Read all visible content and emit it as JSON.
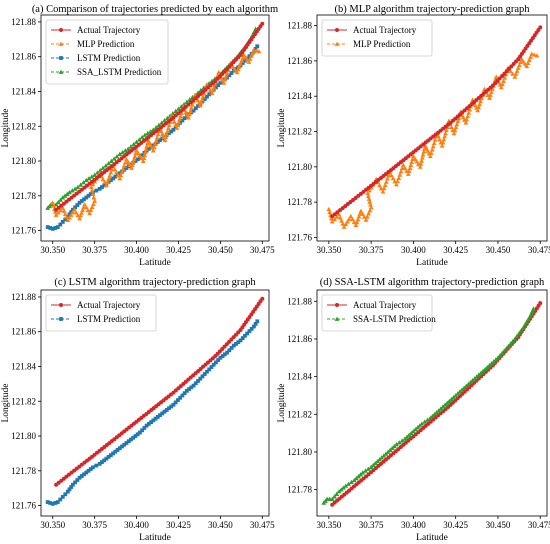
{
  "colors": {
    "actual": "#d62728",
    "mlp": "#ff7f0e",
    "lstm": "#1f77b4",
    "ssa": "#2ca02c"
  },
  "chart_data": [
    {
      "type": "line",
      "title": "(a) Comparison of trajectories predicted by each algorithm",
      "xlabel": "Latitude",
      "ylabel": "Longitude",
      "xlim": [
        30.343,
        30.479
      ],
      "ylim": [
        121.754,
        121.884
      ],
      "xticks": [
        30.35,
        30.375,
        30.4,
        30.425,
        30.45,
        30.475
      ],
      "xtick_labels": [
        "30.350",
        "30.375",
        "30.400",
        "30.425",
        "30.450",
        "30.475"
      ],
      "yticks": [
        121.76,
        121.78,
        121.8,
        121.82,
        121.84,
        121.86,
        121.88
      ],
      "ytick_labels": [
        "121.76",
        "121.78",
        "121.80",
        "121.82",
        "121.84",
        "121.86",
        "121.88"
      ],
      "legend": "upper-left",
      "series": [
        {
          "name": "Actual Trajectory",
          "key": "actual",
          "marker": "o",
          "dashed": false
        },
        {
          "name": "MLP Prediction",
          "key": "mlp",
          "marker": "^",
          "dashed": true
        },
        {
          "name": "LSTM Prediction",
          "key": "lstm",
          "marker": "s",
          "dashed": true
        },
        {
          "name": "SSA_LSTM Prediction",
          "key": "ssa",
          "marker": "^",
          "dashed": true
        }
      ]
    },
    {
      "type": "line",
      "title": "(b) MLP algorithm trajectory-prediction graph",
      "xlabel": "Latitude",
      "ylabel": "Longitude",
      "xlim": [
        30.343,
        30.479
      ],
      "ylim": [
        121.758,
        121.886
      ],
      "xticks": [
        30.35,
        30.375,
        30.4,
        30.425,
        30.45,
        30.475
      ],
      "xtick_labels": [
        "30.350",
        "30.375",
        "30.400",
        "30.425",
        "30.450",
        "30.475"
      ],
      "yticks": [
        121.76,
        121.78,
        121.8,
        121.82,
        121.84,
        121.86,
        121.88
      ],
      "ytick_labels": [
        "121.76",
        "121.78",
        "121.80",
        "121.82",
        "121.84",
        "121.86",
        "121.88"
      ],
      "legend": "upper-left",
      "series": [
        {
          "name": "Actual Trajectory",
          "key": "actual",
          "marker": "o",
          "dashed": false
        },
        {
          "name": "MLP Prediction",
          "key": "mlp",
          "marker": "^",
          "dashed": true
        }
      ]
    },
    {
      "type": "line",
      "title": "(c) LSTM algorithm trajectory-prediction graph",
      "xlabel": "Latitude",
      "ylabel": "Longitude",
      "xlim": [
        30.343,
        30.479
      ],
      "ylim": [
        121.754,
        121.884
      ],
      "xticks": [
        30.35,
        30.375,
        30.4,
        30.425,
        30.45,
        30.475
      ],
      "xtick_labels": [
        "30.350",
        "30.375",
        "30.400",
        "30.425",
        "30.450",
        "30.475"
      ],
      "yticks": [
        121.76,
        121.78,
        121.8,
        121.82,
        121.84,
        121.86,
        121.88
      ],
      "ytick_labels": [
        "121.76",
        "121.78",
        "121.80",
        "121.82",
        "121.84",
        "121.86",
        "121.88"
      ],
      "legend": "upper-left",
      "series": [
        {
          "name": "Actual Trajectory",
          "key": "actual",
          "marker": "o",
          "dashed": false
        },
        {
          "name": "LSTM Prediction",
          "key": "lstm",
          "marker": "s",
          "dashed": true
        }
      ]
    },
    {
      "type": "line",
      "title": "(d) SSA-LSTM algorithm trajectory-prediction graph",
      "xlabel": "Latitude",
      "ylabel": "Longitude",
      "xlim": [
        30.343,
        30.479
      ],
      "ylim": [
        121.766,
        121.886
      ],
      "xticks": [
        30.35,
        30.375,
        30.4,
        30.425,
        30.45,
        30.475
      ],
      "xtick_labels": [
        "30.350",
        "30.375",
        "30.400",
        "30.425",
        "30.450",
        "30.475"
      ],
      "yticks": [
        121.78,
        121.8,
        121.82,
        121.84,
        121.86,
        121.88
      ],
      "ytick_labels": [
        "121.78",
        "121.80",
        "121.82",
        "121.84",
        "121.86",
        "121.88"
      ],
      "legend": "upper-left",
      "series": [
        {
          "name": "Actual Trajectory",
          "key": "actual",
          "marker": "o",
          "dashed": false
        },
        {
          "name": "SSA-LSTM Prediction",
          "key": "ssa",
          "marker": "^",
          "dashed": true
        }
      ]
    }
  ],
  "trajectories": {
    "actual": [
      [
        30.352,
        121.772
      ],
      [
        30.372,
        121.787
      ],
      [
        30.397,
        121.806
      ],
      [
        30.422,
        121.825
      ],
      [
        30.447,
        121.846
      ],
      [
        30.462,
        121.861
      ],
      [
        30.475,
        121.879
      ]
    ],
    "mlp": [
      [
        30.35,
        121.776
      ],
      [
        30.352,
        121.769
      ],
      [
        30.356,
        121.773
      ],
      [
        30.359,
        121.766
      ],
      [
        30.363,
        121.772
      ],
      [
        30.366,
        121.767
      ],
      [
        30.369,
        121.775
      ],
      [
        30.372,
        121.77
      ],
      [
        30.375,
        121.777
      ],
      [
        30.373,
        121.785
      ],
      [
        30.378,
        121.793
      ],
      [
        30.382,
        121.786
      ],
      [
        30.386,
        121.797
      ],
      [
        30.39,
        121.79
      ],
      [
        30.394,
        121.801
      ],
      [
        30.397,
        121.796
      ],
      [
        30.4,
        121.806
      ],
      [
        30.404,
        121.8
      ],
      [
        30.407,
        121.812
      ],
      [
        30.41,
        121.806
      ],
      [
        30.414,
        121.819
      ],
      [
        30.417,
        121.812
      ],
      [
        30.421,
        121.826
      ],
      [
        30.424,
        121.819
      ],
      [
        30.428,
        121.831
      ],
      [
        30.431,
        121.825
      ],
      [
        30.435,
        121.838
      ],
      [
        30.438,
        121.832
      ],
      [
        30.442,
        121.844
      ],
      [
        30.445,
        121.839
      ],
      [
        30.449,
        121.851
      ],
      [
        30.452,
        121.845
      ],
      [
        30.456,
        121.856
      ],
      [
        30.46,
        121.851
      ],
      [
        30.464,
        121.861
      ],
      [
        30.467,
        121.857
      ],
      [
        30.47,
        121.864
      ],
      [
        30.473,
        121.863
      ]
    ],
    "lstm": [
      [
        30.347,
        121.762
      ],
      [
        30.35,
        121.761
      ],
      [
        30.353,
        121.762
      ],
      [
        30.356,
        121.765
      ],
      [
        30.359,
        121.768
      ],
      [
        30.362,
        121.772
      ],
      [
        30.366,
        121.776
      ],
      [
        30.37,
        121.779
      ],
      [
        30.374,
        121.782
      ],
      [
        30.378,
        121.784
      ],
      [
        30.382,
        121.787
      ],
      [
        30.386,
        121.79
      ],
      [
        30.39,
        121.793
      ],
      [
        30.394,
        121.796
      ],
      [
        30.398,
        121.799
      ],
      [
        30.402,
        121.802
      ],
      [
        30.406,
        121.806
      ],
      [
        30.41,
        121.809
      ],
      [
        30.414,
        121.812
      ],
      [
        30.418,
        121.815
      ],
      [
        30.422,
        121.818
      ],
      [
        30.426,
        121.822
      ],
      [
        30.43,
        121.826
      ],
      [
        30.434,
        121.829
      ],
      [
        30.438,
        121.833
      ],
      [
        30.442,
        121.837
      ],
      [
        30.446,
        121.841
      ],
      [
        30.45,
        121.845
      ],
      [
        30.454,
        121.848
      ],
      [
        30.458,
        121.852
      ],
      [
        30.462,
        121.855
      ],
      [
        30.466,
        121.859
      ],
      [
        30.47,
        121.863
      ],
      [
        30.472,
        121.866
      ]
    ],
    "ssa": [
      [
        30.347,
        121.773
      ],
      [
        30.349,
        121.775
      ],
      [
        30.352,
        121.775
      ],
      [
        30.356,
        121.779
      ],
      [
        30.36,
        121.782
      ],
      [
        30.365,
        121.785
      ],
      [
        30.37,
        121.789
      ],
      [
        30.375,
        121.792
      ],
      [
        30.38,
        121.796
      ],
      [
        30.385,
        121.8
      ],
      [
        30.39,
        121.804
      ],
      [
        30.395,
        121.807
      ],
      [
        30.4,
        121.811
      ],
      [
        30.405,
        121.815
      ],
      [
        30.41,
        121.818
      ],
      [
        30.415,
        121.822
      ],
      [
        30.42,
        121.826
      ],
      [
        30.425,
        121.83
      ],
      [
        30.43,
        121.834
      ],
      [
        30.435,
        121.838
      ],
      [
        30.44,
        121.842
      ],
      [
        30.445,
        121.846
      ],
      [
        30.45,
        121.85
      ],
      [
        30.455,
        121.855
      ],
      [
        30.46,
        121.86
      ],
      [
        30.465,
        121.866
      ],
      [
        30.469,
        121.872
      ],
      [
        30.471,
        121.876
      ]
    ]
  }
}
